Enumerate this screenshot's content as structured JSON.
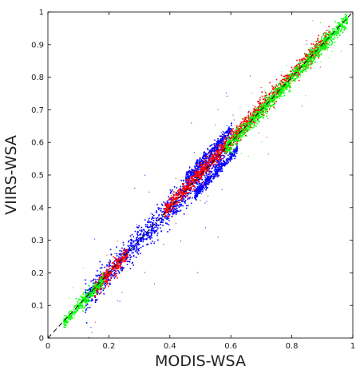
{
  "chart_data": {
    "type": "scatter",
    "xlabel": "MODIS-WSA",
    "ylabel": "VIIRS-WSA",
    "xlim": [
      0,
      1
    ],
    "ylim": [
      0,
      1
    ],
    "x_ticks": [
      "0",
      "0.2",
      "0.4",
      "0.6",
      "0.8",
      "1"
    ],
    "y_ticks": [
      "0",
      "0.1",
      "0.2",
      "0.3",
      "0.4",
      "0.5",
      "0.6",
      "0.7",
      "0.8",
      "0.9",
      "1"
    ],
    "grid": false,
    "reference_line": {
      "style": "dashed",
      "color": "#000000",
      "from": [
        0,
        0
      ],
      "to": [
        1,
        1
      ]
    },
    "series": [
      {
        "color": "#0000ff",
        "clusters": [
          {
            "x_range": [
              0.12,
              0.58
            ],
            "spread": 0.022,
            "offset": 0.0
          },
          {
            "x_range": [
              0.45,
              0.6
            ],
            "spread": 0.01,
            "offset": 0.04
          },
          {
            "x_range": [
              0.48,
              0.62
            ],
            "spread": 0.008,
            "offset": -0.04
          }
        ]
      },
      {
        "color": "#ff0000",
        "clusters": [
          {
            "x_range": [
              0.15,
              0.26
            ],
            "spread": 0.012,
            "offset": 0.0
          },
          {
            "x_range": [
              0.38,
              0.92
            ],
            "spread": 0.013,
            "offset": 0.01
          }
        ]
      },
      {
        "color": "#00ff00",
        "clusters": [
          {
            "x_range": [
              0.05,
              0.18
            ],
            "spread": 0.01,
            "offset": 0.0
          },
          {
            "x_range": [
              0.58,
              0.98
            ],
            "spread": 0.012,
            "offset": 0.0
          }
        ]
      }
    ]
  }
}
